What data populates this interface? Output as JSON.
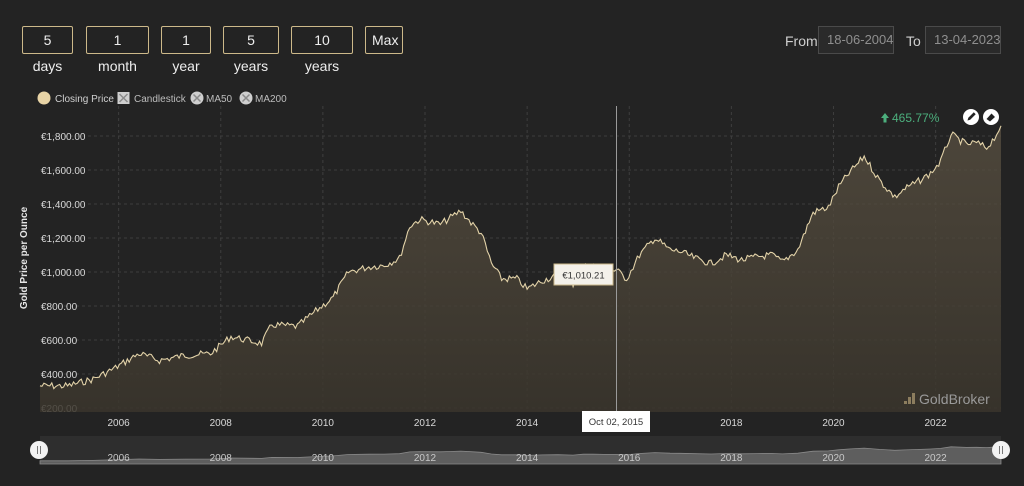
{
  "range_buttons": [
    "5 days",
    "1 month",
    "1 year",
    "5 years",
    "10 years",
    "Max"
  ],
  "date_range": {
    "from_label": "From",
    "from_value": "18-06-2004",
    "to_label": "To",
    "to_value": "13-04-2023"
  },
  "legend": {
    "items": [
      {
        "label": "Closing Price",
        "active": true
      },
      {
        "label": "Candlestick",
        "active": false
      },
      {
        "label": "MA50",
        "active": false
      },
      {
        "label": "MA200",
        "active": false
      }
    ]
  },
  "change_indicator": {
    "text": "465.77%",
    "color": "#4caf7d"
  },
  "tooltip": {
    "value_text": "€1,010.21",
    "date_text": "Oct 02, 2015"
  },
  "watermark": "GoldBroker",
  "icons": {
    "pencil": "pencil-icon",
    "eraser": "eraser-icon",
    "up_arrow": "up-arrow-icon"
  },
  "colors": {
    "accent": "#cdb98a",
    "line": "#e2d2a8",
    "background": "#232323",
    "up": "#4caf7d"
  },
  "chart_data": {
    "type": "area",
    "title": "",
    "ylabel": "Gold Price per Ounce",
    "xlabel": "",
    "ylim": [
      200,
      1900
    ],
    "xlim": [
      2004.46,
      2023.28
    ],
    "y_ticks": [
      200,
      400,
      600,
      800,
      1000,
      1200,
      1400,
      1600,
      1800
    ],
    "y_tick_labels": [
      "€200.00",
      "€400.00",
      "€600.00",
      "€800.00",
      "€1,000.00",
      "€1,200.00",
      "€1,400.00",
      "€1,600.00",
      "€1,800.00"
    ],
    "x_ticks": [
      2006,
      2008,
      2010,
      2012,
      2014,
      2016,
      2018,
      2020,
      2022
    ],
    "x_tick_labels": [
      "2006",
      "2008",
      "2010",
      "2012",
      "2014",
      "2016",
      "2018",
      "2020",
      "2022"
    ],
    "grid": true,
    "legend_position": "top-left",
    "series": [
      {
        "name": "Closing Price",
        "x": [
          2004.46,
          2005.0,
          2005.5,
          2005.9,
          2006.4,
          2006.8,
          2007.3,
          2007.8,
          2008.2,
          2008.8,
          2009.0,
          2009.5,
          2009.9,
          2010.2,
          2010.5,
          2010.9,
          2011.2,
          2011.5,
          2011.7,
          2011.9,
          2012.3,
          2012.5,
          2012.7,
          2012.9,
          2013.1,
          2013.3,
          2013.5,
          2013.8,
          2014.0,
          2014.3,
          2014.6,
          2014.9,
          2015.1,
          2015.3,
          2015.5,
          2015.75,
          2015.95,
          2016.2,
          2016.5,
          2016.8,
          2017.0,
          2017.3,
          2017.6,
          2017.9,
          2018.2,
          2018.5,
          2018.8,
          2019.0,
          2019.3,
          2019.6,
          2019.9,
          2020.1,
          2020.3,
          2020.6,
          2020.9,
          2021.2,
          2021.4,
          2021.7,
          2021.9,
          2022.1,
          2022.3,
          2022.6,
          2022.8,
          2023.0,
          2023.15,
          2023.28
        ],
        "values": [
          330,
          330,
          370,
          430,
          520,
          480,
          510,
          520,
          620,
          580,
          690,
          680,
          780,
          850,
          1000,
          1030,
          1040,
          1080,
          1270,
          1310,
          1280,
          1320,
          1360,
          1290,
          1230,
          1050,
          960,
          960,
          900,
          950,
          980,
          930,
          1030,
          1040,
          1010,
          1010,
          960,
          1100,
          1200,
          1130,
          1120,
          1080,
          1050,
          1100,
          1070,
          1090,
          1100,
          1060,
          1130,
          1350,
          1380,
          1500,
          1580,
          1680,
          1540,
          1440,
          1490,
          1540,
          1580,
          1650,
          1810,
          1750,
          1760,
          1730,
          1790,
          1860
        ]
      }
    ],
    "percent_change": "465.77%"
  }
}
